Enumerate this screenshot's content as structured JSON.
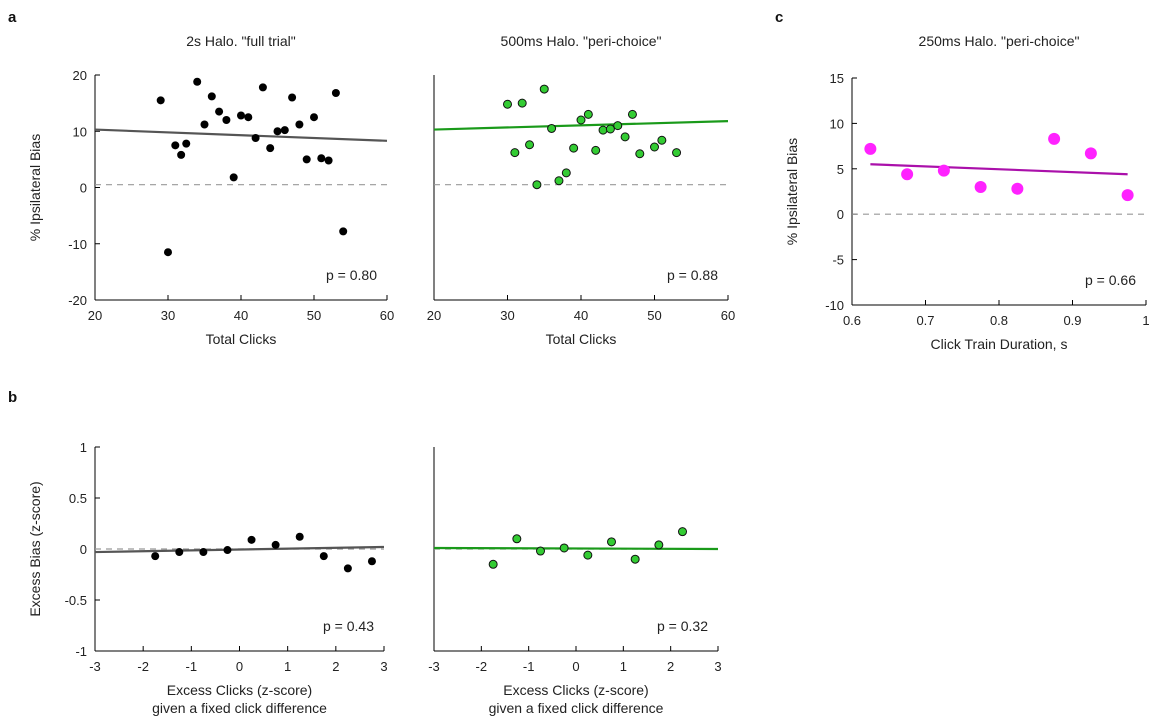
{
  "panel_letters": {
    "a": "a",
    "b": "b",
    "c": "c"
  },
  "chart_data": [
    {
      "id": "a1",
      "type": "scatter",
      "title": "2s Halo. \"full trial\"",
      "xlabel": "Total Clicks",
      "ylabel": "% Ipsilateral Bias",
      "xlim": [
        20,
        60
      ],
      "ylim": [
        -20,
        20
      ],
      "xticks": [
        20,
        30,
        40,
        50,
        60
      ],
      "yticks": [
        -20,
        -10,
        0,
        10,
        20
      ],
      "show_y_axis": true,
      "marker": "circle",
      "color": "#000000",
      "line_color": "#555555",
      "fit": [
        [
          20,
          10.3
        ],
        [
          60,
          8.3
        ]
      ],
      "baseline": 0.5,
      "p_label": "p = 0.80",
      "points": [
        [
          29,
          15.5
        ],
        [
          30,
          -11.5
        ],
        [
          31,
          7.5
        ],
        [
          31.8,
          5.8
        ],
        [
          32.5,
          7.8
        ],
        [
          34,
          18.8
        ],
        [
          35,
          11.2
        ],
        [
          36,
          16.2
        ],
        [
          37,
          13.5
        ],
        [
          38,
          12
        ],
        [
          39,
          1.8
        ],
        [
          40,
          12.8
        ],
        [
          41,
          12.5
        ],
        [
          42,
          8.8
        ],
        [
          43,
          17.8
        ],
        [
          44,
          7
        ],
        [
          45,
          10
        ],
        [
          46,
          10.2
        ],
        [
          47,
          16
        ],
        [
          48,
          11.2
        ],
        [
          49,
          5
        ],
        [
          50,
          12.5
        ],
        [
          51,
          5.2
        ],
        [
          52,
          4.8
        ],
        [
          53,
          16.8
        ],
        [
          54,
          -7.8
        ]
      ]
    },
    {
      "id": "a2",
      "type": "scatter",
      "title": "500ms Halo. \"peri-choice\"",
      "xlabel": "Total Clicks",
      "ylabel": "",
      "xlim": [
        20,
        60
      ],
      "ylim": [
        -20,
        20
      ],
      "xticks": [
        20,
        30,
        40,
        50,
        60
      ],
      "yticks": [],
      "show_y_axis": false,
      "marker": "circle-outline",
      "color": "#33cc33",
      "line_color": "#1a9a1a",
      "fit": [
        [
          20,
          10.3
        ],
        [
          60,
          11.8
        ]
      ],
      "baseline": 0.5,
      "p_label": "p = 0.88",
      "points": [
        [
          30,
          14.8
        ],
        [
          31,
          6.2
        ],
        [
          32,
          15
        ],
        [
          33,
          7.6
        ],
        [
          34,
          0.5
        ],
        [
          35,
          17.5
        ],
        [
          36,
          10.5
        ],
        [
          37,
          1.2
        ],
        [
          38,
          2.6
        ],
        [
          39,
          7
        ],
        [
          40,
          12
        ],
        [
          41,
          13
        ],
        [
          42,
          6.6
        ],
        [
          43,
          10.2
        ],
        [
          44,
          10.4
        ],
        [
          45,
          11
        ],
        [
          46,
          9
        ],
        [
          47,
          13
        ],
        [
          48,
          6
        ],
        [
          50,
          7.2
        ],
        [
          51,
          8.4
        ],
        [
          53,
          6.2
        ]
      ]
    },
    {
      "id": "c",
      "type": "scatter",
      "title": "250ms Halo. \"peri-choice\"",
      "xlabel": "Click Train Duration, s",
      "ylabel": "% Ipsilateral Bias",
      "xlim": [
        0.6,
        1.0
      ],
      "ylim": [
        -10,
        15
      ],
      "xticks": [
        0.6,
        0.7,
        0.8,
        0.9,
        1
      ],
      "xtick_labels": [
        "0.6",
        "0.7",
        "0.8",
        "0.9",
        "1"
      ],
      "yticks": [
        -10,
        -5,
        0,
        5,
        10,
        15
      ],
      "show_y_axis": true,
      "marker": "circle-big",
      "color": "#ff22ff",
      "line_color": "#aa10aa",
      "fit": [
        [
          0.625,
          5.5
        ],
        [
          0.975,
          4.4
        ]
      ],
      "baseline": 0,
      "p_label": "p = 0.66",
      "points": [
        [
          0.625,
          7.2
        ],
        [
          0.675,
          4.4
        ],
        [
          0.725,
          4.8
        ],
        [
          0.775,
          3
        ],
        [
          0.825,
          2.8
        ],
        [
          0.875,
          8.3
        ],
        [
          0.925,
          6.7
        ],
        [
          0.975,
          2.1
        ]
      ]
    },
    {
      "id": "b1",
      "type": "scatter",
      "title": "",
      "xlabel": "Excess Clicks (z-score)",
      "xlabel2": "given a fixed click difference",
      "ylabel": "Excess Bias (z-score)",
      "xlim": [
        -3,
        3
      ],
      "ylim": [
        -1,
        1
      ],
      "xticks": [
        -3,
        -2,
        -1,
        0,
        1,
        2,
        3
      ],
      "yticks": [
        -1,
        -0.5,
        0,
        0.5,
        1
      ],
      "show_y_axis": true,
      "marker": "circle",
      "color": "#000000",
      "line_color": "#555555",
      "fit": [
        [
          -3,
          -0.03
        ],
        [
          3,
          0.02
        ]
      ],
      "baseline": 0,
      "p_label": "p = 0.43",
      "points": [
        [
          -1.75,
          -0.07
        ],
        [
          -1.25,
          -0.03
        ],
        [
          -0.75,
          -0.03
        ],
        [
          -0.25,
          -0.01
        ],
        [
          0.25,
          0.09
        ],
        [
          0.75,
          0.04
        ],
        [
          1.25,
          0.12
        ],
        [
          1.75,
          -0.07
        ],
        [
          2.25,
          -0.19
        ],
        [
          2.75,
          -0.12
        ]
      ]
    },
    {
      "id": "b2",
      "type": "scatter",
      "title": "",
      "xlabel": "Excess Clicks (z-score)",
      "xlabel2": "given a fixed click difference",
      "ylabel": "",
      "xlim": [
        -3,
        3
      ],
      "ylim": [
        -1,
        1
      ],
      "xticks": [
        -3,
        -2,
        -1,
        0,
        1,
        2,
        3
      ],
      "yticks": [],
      "show_y_axis": false,
      "marker": "circle-outline",
      "color": "#33cc33",
      "line_color": "#1a9a1a",
      "fit": [
        [
          -3,
          0.01
        ],
        [
          3,
          0.0
        ]
      ],
      "baseline": 0,
      "p_label": "p = 0.32",
      "points": [
        [
          -1.75,
          -0.15
        ],
        [
          -1.25,
          0.1
        ],
        [
          -0.75,
          -0.02
        ],
        [
          -0.25,
          0.01
        ],
        [
          0.25,
          -0.06
        ],
        [
          0.75,
          0.07
        ],
        [
          1.25,
          -0.1
        ],
        [
          1.75,
          0.04
        ],
        [
          2.25,
          0.17
        ]
      ]
    }
  ]
}
